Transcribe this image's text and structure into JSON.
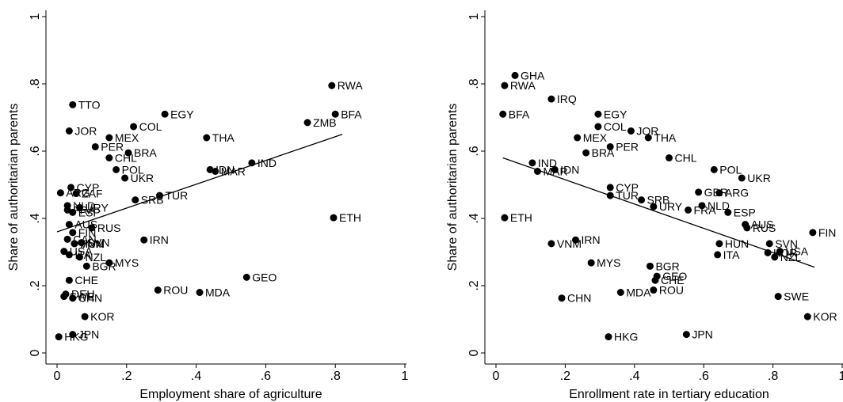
{
  "chart_data": [
    {
      "type": "scatter",
      "xlabel": "Employment share of agriculture",
      "ylabel": "Share of authoritarian parents",
      "xlim": [
        0,
        1
      ],
      "ylim": [
        0,
        1
      ],
      "x_ticks": [
        0,
        0.2,
        0.4,
        0.6,
        0.8,
        1
      ],
      "x_tick_labels": [
        "0",
        ".2",
        ".4",
        ".6",
        ".8",
        "1"
      ],
      "y_ticks": [
        0,
        0.2,
        0.4,
        0.6,
        0.8,
        1
      ],
      "y_tick_labels": [
        "0",
        ".2",
        ".4",
        ".6",
        ".8",
        "1"
      ],
      "grid": false,
      "fit_line": {
        "x": [
          0.0,
          0.82
        ],
        "y": [
          0.36,
          0.65
        ]
      },
      "points": [
        {
          "label": "RWA",
          "x": 0.79,
          "y": 0.795
        },
        {
          "label": "BFA",
          "x": 0.8,
          "y": 0.71
        },
        {
          "label": "ZMB",
          "x": 0.72,
          "y": 0.685
        },
        {
          "label": "ETH",
          "x": 0.795,
          "y": 0.402
        },
        {
          "label": "TTO",
          "x": 0.045,
          "y": 0.738
        },
        {
          "label": "EGY",
          "x": 0.31,
          "y": 0.71
        },
        {
          "label": "COL",
          "x": 0.22,
          "y": 0.673
        },
        {
          "label": "JOR",
          "x": 0.035,
          "y": 0.66
        },
        {
          "label": "THA",
          "x": 0.43,
          "y": 0.64
        },
        {
          "label": "MEX",
          "x": 0.15,
          "y": 0.64
        },
        {
          "label": "PER",
          "x": 0.11,
          "y": 0.613
        },
        {
          "label": "BRA",
          "x": 0.205,
          "y": 0.595
        },
        {
          "label": "CHL",
          "x": 0.15,
          "y": 0.58
        },
        {
          "label": "IND",
          "x": 0.56,
          "y": 0.565
        },
        {
          "label": "POL",
          "x": 0.17,
          "y": 0.545
        },
        {
          "label": "IDN",
          "x": 0.44,
          "y": 0.545
        },
        {
          "label": "MAR",
          "x": 0.455,
          "y": 0.54
        },
        {
          "label": "UKR",
          "x": 0.195,
          "y": 0.52
        },
        {
          "label": "CYP",
          "x": 0.04,
          "y": 0.492
        },
        {
          "label": "ARG",
          "x": 0.01,
          "y": 0.476
        },
        {
          "label": "ZAF",
          "x": 0.055,
          "y": 0.474
        },
        {
          "label": "TUR",
          "x": 0.295,
          "y": 0.468
        },
        {
          "label": "SRB",
          "x": 0.225,
          "y": 0.455
        },
        {
          "label": "NLD",
          "x": 0.03,
          "y": 0.438
        },
        {
          "label": "URY",
          "x": 0.065,
          "y": 0.432
        },
        {
          "label": "FRA",
          "x": 0.03,
          "y": 0.425
        },
        {
          "label": "ESP",
          "x": 0.045,
          "y": 0.418
        },
        {
          "label": "AUS",
          "x": 0.035,
          "y": 0.382
        },
        {
          "label": "RUS",
          "x": 0.1,
          "y": 0.372
        },
        {
          "label": "FIN",
          "x": 0.045,
          "y": 0.358
        },
        {
          "label": "CAN",
          "x": 0.03,
          "y": 0.338
        },
        {
          "label": "IRN",
          "x": 0.25,
          "y": 0.336
        },
        {
          "label": "SVN",
          "x": 0.07,
          "y": 0.328
        },
        {
          "label": "HUN",
          "x": 0.05,
          "y": 0.325
        },
        {
          "label": "VNM",
          "x": 0.05,
          "y": 0.325
        },
        {
          "label": "USA",
          "x": 0.02,
          "y": 0.302
        },
        {
          "label": "ITA",
          "x": 0.035,
          "y": 0.292
        },
        {
          "label": "NZL",
          "x": 0.065,
          "y": 0.285
        },
        {
          "label": "MYS",
          "x": 0.15,
          "y": 0.268
        },
        {
          "label": "BGR",
          "x": 0.085,
          "y": 0.258
        },
        {
          "label": "GEO",
          "x": 0.545,
          "y": 0.225
        },
        {
          "label": "CHE",
          "x": 0.035,
          "y": 0.216
        },
        {
          "label": "ROU",
          "x": 0.29,
          "y": 0.187
        },
        {
          "label": "MDA",
          "x": 0.41,
          "y": 0.18
        },
        {
          "label": "DEU",
          "x": 0.025,
          "y": 0.175
        },
        {
          "label": "SWE",
          "x": 0.02,
          "y": 0.168
        },
        {
          "label": "CHN",
          "x": 0.045,
          "y": 0.163
        },
        {
          "label": "KOR",
          "x": 0.08,
          "y": 0.108
        },
        {
          "label": "JPN",
          "x": 0.045,
          "y": 0.055
        },
        {
          "label": "HKG",
          "x": 0.005,
          "y": 0.048
        }
      ]
    },
    {
      "type": "scatter",
      "xlabel": "Enrollment rate in tertiary education",
      "ylabel": "Share of authoritarian parents",
      "xlim": [
        0,
        1
      ],
      "ylim": [
        0,
        1
      ],
      "x_ticks": [
        0,
        0.2,
        0.4,
        0.6,
        0.8,
        1
      ],
      "x_tick_labels": [
        "0",
        ".2",
        ".4",
        ".6",
        ".8",
        "1"
      ],
      "y_ticks": [
        0,
        0.2,
        0.4,
        0.6,
        0.8,
        1
      ],
      "y_tick_labels": [
        "0",
        ".2",
        ".4",
        ".6",
        ".8",
        "1"
      ],
      "grid": false,
      "fit_line": {
        "x": [
          0.02,
          0.92
        ],
        "y": [
          0.58,
          0.255
        ]
      },
      "points": [
        {
          "label": "GHA",
          "x": 0.055,
          "y": 0.825
        },
        {
          "label": "RWA",
          "x": 0.025,
          "y": 0.795
        },
        {
          "label": "IRQ",
          "x": 0.16,
          "y": 0.755
        },
        {
          "label": "BFA",
          "x": 0.02,
          "y": 0.71
        },
        {
          "label": "EGY",
          "x": 0.295,
          "y": 0.71
        },
        {
          "label": "COL",
          "x": 0.295,
          "y": 0.673
        },
        {
          "label": "JOR",
          "x": 0.39,
          "y": 0.66
        },
        {
          "label": "MEX",
          "x": 0.235,
          "y": 0.64
        },
        {
          "label": "THA",
          "x": 0.44,
          "y": 0.64
        },
        {
          "label": "PER",
          "x": 0.33,
          "y": 0.613
        },
        {
          "label": "BRA",
          "x": 0.26,
          "y": 0.595
        },
        {
          "label": "CHL",
          "x": 0.5,
          "y": 0.58
        },
        {
          "label": "IND",
          "x": 0.105,
          "y": 0.565
        },
        {
          "label": "POL",
          "x": 0.63,
          "y": 0.545
        },
        {
          "label": "IDN",
          "x": 0.17,
          "y": 0.545
        },
        {
          "label": "MAR",
          "x": 0.12,
          "y": 0.54
        },
        {
          "label": "UKR",
          "x": 0.71,
          "y": 0.52
        },
        {
          "label": "CYP",
          "x": 0.33,
          "y": 0.492
        },
        {
          "label": "GBR",
          "x": 0.585,
          "y": 0.478
        },
        {
          "label": "ARG",
          "x": 0.645,
          "y": 0.476
        },
        {
          "label": "TUR",
          "x": 0.33,
          "y": 0.468
        },
        {
          "label": "SRB",
          "x": 0.42,
          "y": 0.455
        },
        {
          "label": "NLD",
          "x": 0.595,
          "y": 0.438
        },
        {
          "label": "URY",
          "x": 0.455,
          "y": 0.435
        },
        {
          "label": "FRA",
          "x": 0.555,
          "y": 0.425
        },
        {
          "label": "ESP",
          "x": 0.67,
          "y": 0.418
        },
        {
          "label": "ETH",
          "x": 0.025,
          "y": 0.402
        },
        {
          "label": "AUS",
          "x": 0.72,
          "y": 0.382
        },
        {
          "label": "RUS",
          "x": 0.725,
          "y": 0.372
        },
        {
          "label": "FIN",
          "x": 0.915,
          "y": 0.358
        },
        {
          "label": "IRN",
          "x": 0.23,
          "y": 0.336
        },
        {
          "label": "VNM",
          "x": 0.16,
          "y": 0.325
        },
        {
          "label": "HUN",
          "x": 0.645,
          "y": 0.325
        },
        {
          "label": "SVN",
          "x": 0.79,
          "y": 0.325
        },
        {
          "label": "USA",
          "x": 0.82,
          "y": 0.302
        },
        {
          "label": "ITA",
          "x": 0.64,
          "y": 0.292
        },
        {
          "label": "NZL",
          "x": 0.805,
          "y": 0.285
        },
        {
          "label": "KOR",
          "x": 0.785,
          "y": 0.298
        },
        {
          "label": "MYS",
          "x": 0.275,
          "y": 0.268
        },
        {
          "label": "BGR",
          "x": 0.445,
          "y": 0.258
        },
        {
          "label": "GEO",
          "x": 0.465,
          "y": 0.228
        },
        {
          "label": "CHE",
          "x": 0.46,
          "y": 0.216
        },
        {
          "label": "ROU",
          "x": 0.455,
          "y": 0.187
        },
        {
          "label": "MDA",
          "x": 0.36,
          "y": 0.18
        },
        {
          "label": "SWE",
          "x": 0.815,
          "y": 0.168
        },
        {
          "label": "CHN",
          "x": 0.19,
          "y": 0.163
        },
        {
          "label": "KOR",
          "x": 0.9,
          "y": 0.108
        },
        {
          "label": "JPN",
          "x": 0.55,
          "y": 0.055
        },
        {
          "label": "HKG",
          "x": 0.325,
          "y": 0.048
        }
      ]
    }
  ]
}
